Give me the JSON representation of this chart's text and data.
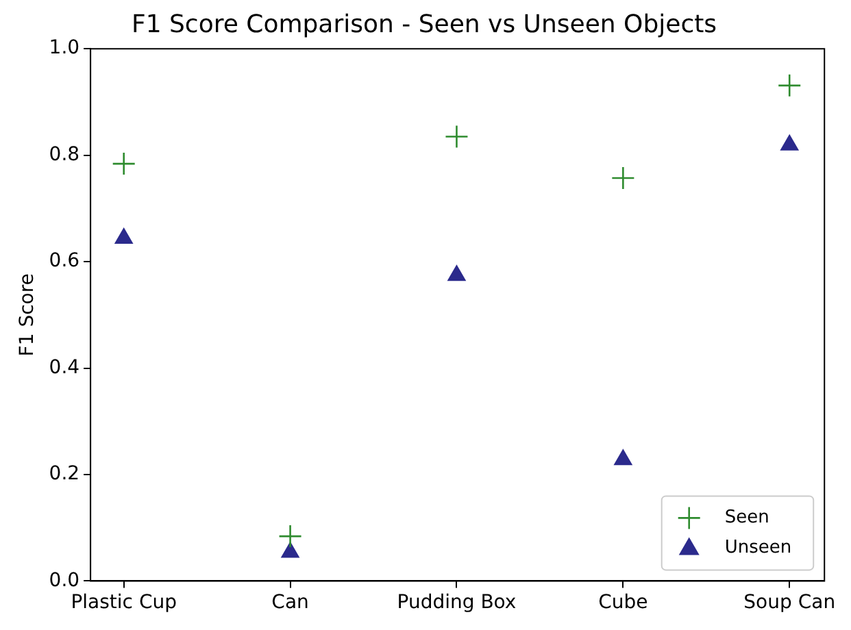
{
  "chart_data": {
    "type": "scatter",
    "title": "F1 Score Comparison - Seen vs Unseen Objects",
    "ylabel": "F1 Score",
    "categories": [
      "Plastic Cup",
      "Can",
      "Pudding Box",
      "Cube",
      "Soup Can"
    ],
    "series": [
      {
        "name": "Seen",
        "color": "#2e8b2e",
        "marker": "cross",
        "values": [
          0.784,
          0.084,
          0.835,
          0.757,
          0.931
        ]
      },
      {
        "name": "Unseen",
        "color": "#2b2a8c",
        "marker": "triangle",
        "values": [
          0.644,
          0.054,
          0.574,
          0.228,
          0.819
        ]
      }
    ],
    "ylim": [
      0,
      1
    ],
    "yticks": [
      {
        "value": 0,
        "label": "0.0"
      },
      0.2,
      0.4,
      0.6,
      0.8,
      {
        "value": 1,
        "label": "1.0"
      }
    ],
    "grid": false,
    "legend": "bottom right"
  }
}
